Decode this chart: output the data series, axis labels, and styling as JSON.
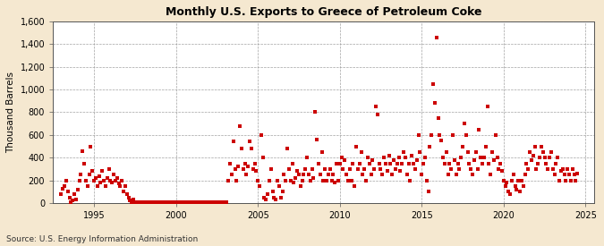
{
  "title": "Monthly U.S. Exports to Greece of Petroleum Coke",
  "ylabel": "Thousand Barrels",
  "source": "Source: U.S. Energy Information Administration",
  "bg_color": "#f5e8d0",
  "plot_bg_color": "#ffffff",
  "marker_color": "#cc0000",
  "marker_size": 5,
  "ylim": [
    0,
    1600
  ],
  "yticks": [
    0,
    200,
    400,
    600,
    800,
    1000,
    1200,
    1400,
    1600
  ],
  "ytick_labels": [
    "0",
    "200",
    "400",
    "600",
    "800",
    "1,000",
    "1,200",
    "1,400",
    "1,600"
  ],
  "xlim_start": 1992.5,
  "xlim_end": 2025.5,
  "xticks": [
    1995,
    2000,
    2005,
    2010,
    2015,
    2020,
    2025
  ],
  "data": [
    [
      1993.0,
      80
    ],
    [
      1993.1,
      130
    ],
    [
      1993.2,
      150
    ],
    [
      1993.3,
      200
    ],
    [
      1993.4,
      100
    ],
    [
      1993.5,
      50
    ],
    [
      1993.6,
      10
    ],
    [
      1993.7,
      20
    ],
    [
      1993.8,
      80
    ],
    [
      1993.9,
      30
    ],
    [
      1994.0,
      120
    ],
    [
      1994.1,
      200
    ],
    [
      1994.2,
      250
    ],
    [
      1994.3,
      460
    ],
    [
      1994.4,
      350
    ],
    [
      1994.5,
      200
    ],
    [
      1994.6,
      150
    ],
    [
      1994.7,
      250
    ],
    [
      1994.8,
      500
    ],
    [
      1994.9,
      280
    ],
    [
      1995.0,
      200
    ],
    [
      1995.1,
      220
    ],
    [
      1995.2,
      150
    ],
    [
      1995.3,
      240
    ],
    [
      1995.4,
      180
    ],
    [
      1995.5,
      280
    ],
    [
      1995.6,
      200
    ],
    [
      1995.7,
      150
    ],
    [
      1995.8,
      220
    ],
    [
      1995.9,
      300
    ],
    [
      1996.0,
      200
    ],
    [
      1996.1,
      180
    ],
    [
      1996.2,
      250
    ],
    [
      1996.3,
      200
    ],
    [
      1996.4,
      220
    ],
    [
      1996.5,
      170
    ],
    [
      1996.6,
      150
    ],
    [
      1996.7,
      200
    ],
    [
      1996.8,
      100
    ],
    [
      1996.9,
      150
    ],
    [
      1997.0,
      80
    ],
    [
      1997.1,
      50
    ],
    [
      1997.2,
      20
    ],
    [
      1997.3,
      10
    ],
    [
      1997.4,
      30
    ],
    [
      1997.5,
      10
    ],
    [
      1997.6,
      5
    ],
    [
      1997.7,
      3
    ],
    [
      1997.8,
      10
    ],
    [
      1997.9,
      5
    ],
    [
      1998.0,
      3
    ],
    [
      1998.1,
      5
    ],
    [
      1998.2,
      3
    ],
    [
      1998.3,
      5
    ],
    [
      1998.4,
      3
    ],
    [
      1998.5,
      5
    ],
    [
      1998.6,
      3
    ],
    [
      1998.7,
      5
    ],
    [
      1998.8,
      3
    ],
    [
      1998.9,
      5
    ],
    [
      1999.0,
      3
    ],
    [
      1999.1,
      5
    ],
    [
      1999.2,
      3
    ],
    [
      1999.3,
      5
    ],
    [
      1999.4,
      3
    ],
    [
      1999.5,
      5
    ],
    [
      1999.6,
      3
    ],
    [
      1999.7,
      5
    ],
    [
      1999.8,
      3
    ],
    [
      1999.9,
      5
    ],
    [
      2000.0,
      3
    ],
    [
      2000.1,
      5
    ],
    [
      2000.2,
      3
    ],
    [
      2000.3,
      5
    ],
    [
      2000.4,
      3
    ],
    [
      2000.5,
      5
    ],
    [
      2000.6,
      3
    ],
    [
      2000.7,
      5
    ],
    [
      2000.8,
      3
    ],
    [
      2000.9,
      5
    ],
    [
      2001.0,
      3
    ],
    [
      2001.1,
      5
    ],
    [
      2001.2,
      3
    ],
    [
      2001.3,
      5
    ],
    [
      2001.4,
      3
    ],
    [
      2001.5,
      5
    ],
    [
      2001.6,
      3
    ],
    [
      2001.7,
      5
    ],
    [
      2001.8,
      3
    ],
    [
      2001.9,
      5
    ],
    [
      2002.0,
      3
    ],
    [
      2002.1,
      5
    ],
    [
      2002.2,
      3
    ],
    [
      2002.3,
      5
    ],
    [
      2002.4,
      3
    ],
    [
      2002.5,
      5
    ],
    [
      2002.6,
      3
    ],
    [
      2002.7,
      5
    ],
    [
      2002.8,
      3
    ],
    [
      2002.9,
      5
    ],
    [
      2003.0,
      3
    ],
    [
      2003.1,
      5
    ],
    [
      2003.2,
      200
    ],
    [
      2003.3,
      350
    ],
    [
      2003.4,
      250
    ],
    [
      2003.5,
      540
    ],
    [
      2003.6,
      300
    ],
    [
      2003.7,
      200
    ],
    [
      2003.8,
      320
    ],
    [
      2003.9,
      680
    ],
    [
      2004.0,
      480
    ],
    [
      2004.1,
      300
    ],
    [
      2004.2,
      350
    ],
    [
      2004.3,
      250
    ],
    [
      2004.4,
      320
    ],
    [
      2004.5,
      540
    ],
    [
      2004.6,
      480
    ],
    [
      2004.7,
      300
    ],
    [
      2004.8,
      350
    ],
    [
      2004.9,
      280
    ],
    [
      2005.0,
      200
    ],
    [
      2005.1,
      150
    ],
    [
      2005.2,
      600
    ],
    [
      2005.3,
      400
    ],
    [
      2005.4,
      50
    ],
    [
      2005.5,
      30
    ],
    [
      2005.6,
      80
    ],
    [
      2005.7,
      200
    ],
    [
      2005.8,
      300
    ],
    [
      2005.9,
      100
    ],
    [
      2006.0,
      50
    ],
    [
      2006.1,
      30
    ],
    [
      2006.2,
      200
    ],
    [
      2006.3,
      150
    ],
    [
      2006.4,
      50
    ],
    [
      2006.5,
      100
    ],
    [
      2006.6,
      250
    ],
    [
      2006.7,
      200
    ],
    [
      2006.8,
      480
    ],
    [
      2006.9,
      300
    ],
    [
      2007.0,
      200
    ],
    [
      2007.1,
      350
    ],
    [
      2007.2,
      180
    ],
    [
      2007.3,
      220
    ],
    [
      2007.4,
      280
    ],
    [
      2007.5,
      250
    ],
    [
      2007.6,
      150
    ],
    [
      2007.7,
      200
    ],
    [
      2007.8,
      250
    ],
    [
      2007.9,
      300
    ],
    [
      2008.0,
      400
    ],
    [
      2008.1,
      250
    ],
    [
      2008.2,
      200
    ],
    [
      2008.3,
      300
    ],
    [
      2008.4,
      220
    ],
    [
      2008.5,
      800
    ],
    [
      2008.6,
      560
    ],
    [
      2008.7,
      350
    ],
    [
      2008.8,
      250
    ],
    [
      2008.9,
      450
    ],
    [
      2009.0,
      200
    ],
    [
      2009.1,
      300
    ],
    [
      2009.2,
      200
    ],
    [
      2009.3,
      250
    ],
    [
      2009.4,
      300
    ],
    [
      2009.5,
      200
    ],
    [
      2009.6,
      250
    ],
    [
      2009.7,
      180
    ],
    [
      2009.8,
      350
    ],
    [
      2009.9,
      200
    ],
    [
      2010.0,
      350
    ],
    [
      2010.1,
      400
    ],
    [
      2010.2,
      300
    ],
    [
      2010.3,
      380
    ],
    [
      2010.4,
      250
    ],
    [
      2010.5,
      200
    ],
    [
      2010.6,
      300
    ],
    [
      2010.7,
      200
    ],
    [
      2010.8,
      350
    ],
    [
      2010.9,
      150
    ],
    [
      2011.0,
      500
    ],
    [
      2011.1,
      300
    ],
    [
      2011.2,
      350
    ],
    [
      2011.3,
      450
    ],
    [
      2011.4,
      250
    ],
    [
      2011.5,
      300
    ],
    [
      2011.6,
      200
    ],
    [
      2011.7,
      400
    ],
    [
      2011.8,
      350
    ],
    [
      2011.9,
      250
    ],
    [
      2012.0,
      380
    ],
    [
      2012.1,
      300
    ],
    [
      2012.2,
      850
    ],
    [
      2012.3,
      780
    ],
    [
      2012.4,
      350
    ],
    [
      2012.5,
      300
    ],
    [
      2012.6,
      250
    ],
    [
      2012.7,
      400
    ],
    [
      2012.8,
      350
    ],
    [
      2012.9,
      280
    ],
    [
      2013.0,
      420
    ],
    [
      2013.1,
      350
    ],
    [
      2013.2,
      250
    ],
    [
      2013.3,
      380
    ],
    [
      2013.4,
      300
    ],
    [
      2013.5,
      350
    ],
    [
      2013.6,
      400
    ],
    [
      2013.7,
      280
    ],
    [
      2013.8,
      350
    ],
    [
      2013.9,
      450
    ],
    [
      2014.0,
      400
    ],
    [
      2014.1,
      250
    ],
    [
      2014.2,
      350
    ],
    [
      2014.3,
      200
    ],
    [
      2014.4,
      420
    ],
    [
      2014.5,
      350
    ],
    [
      2014.6,
      300
    ],
    [
      2014.7,
      380
    ],
    [
      2014.8,
      600
    ],
    [
      2014.9,
      450
    ],
    [
      2015.0,
      250
    ],
    [
      2015.1,
      350
    ],
    [
      2015.2,
      400
    ],
    [
      2015.3,
      200
    ],
    [
      2015.4,
      100
    ],
    [
      2015.5,
      500
    ],
    [
      2015.6,
      600
    ],
    [
      2015.7,
      1050
    ],
    [
      2015.8,
      880
    ],
    [
      2015.9,
      1460
    ],
    [
      2016.0,
      750
    ],
    [
      2016.1,
      600
    ],
    [
      2016.2,
      550
    ],
    [
      2016.3,
      400
    ],
    [
      2016.4,
      350
    ],
    [
      2016.5,
      450
    ],
    [
      2016.6,
      250
    ],
    [
      2016.7,
      350
    ],
    [
      2016.8,
      300
    ],
    [
      2016.9,
      600
    ],
    [
      2017.0,
      380
    ],
    [
      2017.1,
      250
    ],
    [
      2017.2,
      350
    ],
    [
      2017.3,
      300
    ],
    [
      2017.4,
      400
    ],
    [
      2017.5,
      500
    ],
    [
      2017.6,
      700
    ],
    [
      2017.7,
      600
    ],
    [
      2017.8,
      450
    ],
    [
      2017.9,
      350
    ],
    [
      2018.0,
      300
    ],
    [
      2018.1,
      250
    ],
    [
      2018.2,
      380
    ],
    [
      2018.3,
      450
    ],
    [
      2018.4,
      300
    ],
    [
      2018.5,
      650
    ],
    [
      2018.6,
      400
    ],
    [
      2018.7,
      350
    ],
    [
      2018.8,
      400
    ],
    [
      2018.9,
      500
    ],
    [
      2019.0,
      850
    ],
    [
      2019.1,
      350
    ],
    [
      2019.2,
      250
    ],
    [
      2019.3,
      450
    ],
    [
      2019.4,
      380
    ],
    [
      2019.5,
      600
    ],
    [
      2019.6,
      400
    ],
    [
      2019.7,
      300
    ],
    [
      2019.8,
      350
    ],
    [
      2019.9,
      280
    ],
    [
      2020.0,
      200
    ],
    [
      2020.1,
      150
    ],
    [
      2020.2,
      180
    ],
    [
      2020.3,
      100
    ],
    [
      2020.4,
      80
    ],
    [
      2020.5,
      200
    ],
    [
      2020.6,
      250
    ],
    [
      2020.7,
      150
    ],
    [
      2020.8,
      120
    ],
    [
      2020.9,
      200
    ],
    [
      2021.0,
      100
    ],
    [
      2021.1,
      200
    ],
    [
      2021.2,
      150
    ],
    [
      2021.3,
      250
    ],
    [
      2021.4,
      350
    ],
    [
      2021.5,
      300
    ],
    [
      2021.6,
      450
    ],
    [
      2021.7,
      380
    ],
    [
      2021.8,
      420
    ],
    [
      2021.9,
      500
    ],
    [
      2022.0,
      300
    ],
    [
      2022.1,
      350
    ],
    [
      2022.2,
      400
    ],
    [
      2022.3,
      500
    ],
    [
      2022.4,
      450
    ],
    [
      2022.5,
      400
    ],
    [
      2022.6,
      350
    ],
    [
      2022.7,
      300
    ],
    [
      2022.8,
      400
    ],
    [
      2022.9,
      450
    ],
    [
      2023.0,
      300
    ],
    [
      2023.1,
      250
    ],
    [
      2023.2,
      350
    ],
    [
      2023.3,
      400
    ],
    [
      2023.4,
      200
    ],
    [
      2023.5,
      280
    ],
    [
      2023.6,
      300
    ],
    [
      2023.7,
      250
    ],
    [
      2023.8,
      200
    ],
    [
      2023.9,
      300
    ],
    [
      2024.0,
      250
    ],
    [
      2024.1,
      200
    ],
    [
      2024.2,
      300
    ],
    [
      2024.3,
      250
    ],
    [
      2024.4,
      200
    ],
    [
      2024.5,
      260
    ]
  ]
}
